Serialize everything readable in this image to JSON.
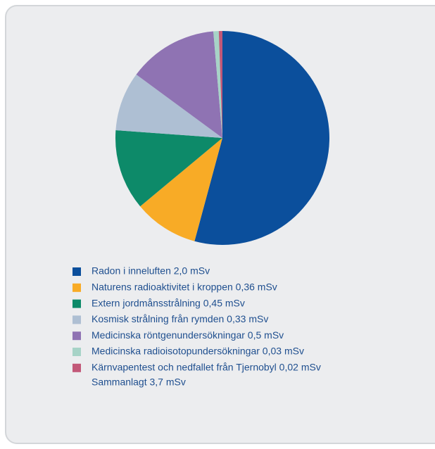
{
  "chart_data": {
    "type": "pie",
    "categories": [
      "Radon i inneluften 2,0 mSv",
      "Naturens radioaktivitet i kroppen 0,36 mSv",
      "Extern jordmånsstrålning 0,45 mSv",
      "Kosmisk strålning från rymden 0,33 mSv",
      "Medicinska röntgenundersökningar 0,5 mSv",
      "Medicinska radioisotopundersökningar 0,03 mSv",
      "Kärnvapentest och nedfallet från Tjernobyl 0,02 mSv"
    ],
    "values": [
      2.0,
      0.36,
      0.45,
      0.33,
      0.5,
      0.03,
      0.02
    ],
    "colors": [
      "#0b4f9c",
      "#f8ab26",
      "#0d8a69",
      "#aebfd3",
      "#8f73b3",
      "#a7d3c7",
      "#c25878"
    ],
    "annotation": "Sammanlagt 3,7 mSv"
  }
}
